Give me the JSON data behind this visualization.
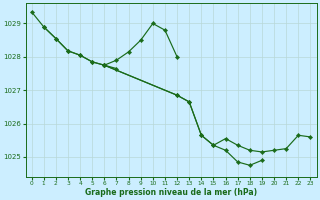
{
  "bg_color": "#cceeff",
  "grid_color": "#b8d8d8",
  "line_color": "#1a6b1a",
  "marker_color": "#1a6b1a",
  "xlabel": "Graphe pression niveau de la mer (hPa)",
  "xlabel_color": "#1a6b1a",
  "xlim": [
    -0.5,
    23.5
  ],
  "ylim": [
    1024.4,
    1029.6
  ],
  "yticks": [
    1025,
    1026,
    1027,
    1028,
    1029
  ],
  "xticks": [
    0,
    1,
    2,
    3,
    4,
    5,
    6,
    7,
    8,
    9,
    10,
    11,
    12,
    13,
    14,
    15,
    16,
    17,
    18,
    19,
    20,
    21,
    22,
    23
  ],
  "series": [
    {
      "x": [
        0,
        1,
        2,
        3,
        4,
        5,
        6,
        7
      ],
      "y": [
        1029.35,
        1028.9,
        1028.55,
        1028.18,
        1028.05,
        1027.85,
        1027.75,
        1027.65
      ]
    },
    {
      "x": [
        1,
        2,
        3,
        4,
        5,
        6,
        7,
        8,
        9,
        10,
        11,
        12
      ],
      "y": [
        1028.9,
        1028.55,
        1028.18,
        1028.05,
        1027.85,
        1027.75,
        1027.9,
        1028.15,
        1028.5,
        1029.0,
        1028.8,
        1028.0
      ]
    },
    {
      "x": [
        6,
        12,
        13,
        14,
        15,
        16,
        17,
        18,
        19,
        20,
        21,
        22,
        23
      ],
      "y": [
        1027.75,
        1026.85,
        1026.65,
        1025.65,
        1025.35,
        1025.55,
        1025.35,
        1025.2,
        1025.15,
        1025.2,
        1025.25,
        1025.65,
        1025.6
      ]
    },
    {
      "x": [
        6,
        12,
        13,
        14,
        15,
        16,
        17,
        18,
        19
      ],
      "y": [
        1027.75,
        1026.85,
        1026.65,
        1025.65,
        1025.35,
        1025.2,
        1024.85,
        1024.75,
        1024.9
      ]
    }
  ]
}
